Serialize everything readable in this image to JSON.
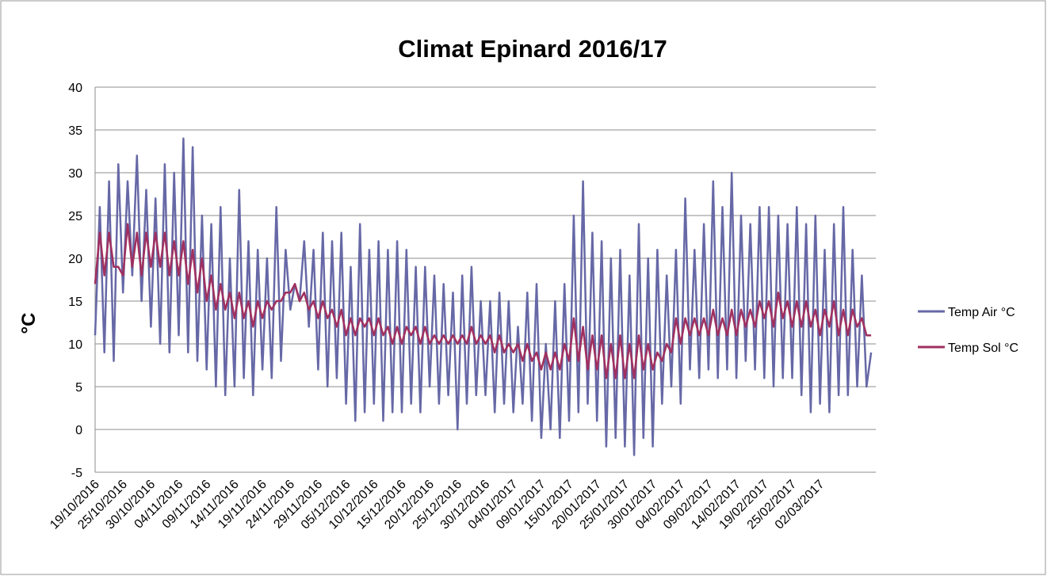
{
  "chart_data": {
    "type": "line",
    "title": "Climat Epinard 2016/17",
    "y_label": "°C",
    "categories": [
      "19/10/2016",
      null,
      null,
      null,
      null,
      null,
      "25/10/2016",
      null,
      null,
      null,
      null,
      null,
      "30/10/2016",
      null,
      null,
      null,
      null,
      null,
      "04/11/2016",
      null,
      null,
      null,
      null,
      null,
      "09/11/2016",
      null,
      null,
      null,
      null,
      null,
      "14/11/2016",
      null,
      null,
      null,
      null,
      null,
      "19/11/2016",
      null,
      null,
      null,
      null,
      null,
      "24/11/2016",
      null,
      null,
      null,
      null,
      null,
      "29/11/2016",
      null,
      null,
      null,
      null,
      null,
      "05/12/2016",
      null,
      null,
      null,
      null,
      null,
      "10/12/2016",
      null,
      null,
      null,
      null,
      null,
      "15/12/2016",
      null,
      null,
      null,
      null,
      null,
      "20/12/2016",
      null,
      null,
      null,
      null,
      null,
      "25/12/2016",
      null,
      null,
      null,
      null,
      null,
      "30/12/2016",
      null,
      null,
      null,
      null,
      null,
      "04/01/2017",
      null,
      null,
      null,
      null,
      null,
      "09/01/2017",
      null,
      null,
      null,
      null,
      null,
      "15/01/2017",
      null,
      null,
      null,
      null,
      null,
      "20/01/2017",
      null,
      null,
      null,
      null,
      null,
      "25/01/2017",
      null,
      null,
      null,
      null,
      null,
      "30/01/2017",
      null,
      null,
      null,
      null,
      null,
      "04/02/2017",
      null,
      null,
      null,
      null,
      null,
      "09/02/2017",
      null,
      null,
      null,
      null,
      null,
      "14/02/2017",
      null,
      null,
      null,
      null,
      null,
      "19/02/2017",
      null,
      null,
      null,
      null,
      null,
      "25/02/2017",
      null,
      null,
      null,
      null,
      null,
      "02/03/2017",
      null,
      null,
      null,
      null,
      null,
      null,
      null,
      null,
      null,
      null,
      null
    ],
    "series": [
      {
        "name": "Temp Air °C",
        "color": "#6668a6",
        "values": [
          11,
          26,
          9,
          29,
          8,
          31,
          16,
          29,
          18,
          32,
          15,
          28,
          12,
          27,
          10,
          31,
          9,
          30,
          11,
          34,
          9,
          33,
          8,
          25,
          7,
          24,
          5,
          26,
          4,
          20,
          5,
          28,
          6,
          22,
          4,
          21,
          7,
          20,
          6,
          26,
          8,
          21,
          14,
          17,
          15,
          22,
          12,
          21,
          7,
          23,
          5,
          22,
          6,
          23,
          3,
          19,
          1,
          24,
          2,
          21,
          3,
          22,
          1,
          21,
          2,
          22,
          2,
          21,
          3,
          19,
          2,
          19,
          5,
          18,
          3,
          17,
          4,
          16,
          0,
          18,
          3,
          19,
          4,
          15,
          4,
          15,
          2,
          16,
          3,
          15,
          2,
          12,
          3,
          16,
          1,
          17,
          -1,
          10,
          0,
          15,
          -1,
          17,
          1,
          25,
          2,
          29,
          3,
          23,
          1,
          22,
          -2,
          20,
          -1,
          21,
          -2,
          18,
          -3,
          24,
          -1,
          20,
          -2,
          21,
          3,
          18,
          5,
          21,
          3,
          27,
          7,
          21,
          6,
          24,
          7,
          29,
          6,
          26,
          7,
          30,
          6,
          25,
          8,
          24,
          7,
          26,
          6,
          26,
          5,
          25,
          6,
          24,
          6,
          26,
          4,
          24,
          2,
          25,
          3,
          21,
          2,
          24,
          4,
          26,
          4,
          21,
          5,
          18,
          5,
          9
        ]
      },
      {
        "name": "Temp Sol °C",
        "color": "#a0305f",
        "values": [
          17,
          23,
          18,
          23,
          19,
          19,
          18,
          24,
          19,
          23,
          18,
          23,
          19,
          23,
          19,
          23,
          18,
          22,
          18,
          22,
          17,
          21,
          16,
          20,
          15,
          18,
          14,
          17,
          14,
          16,
          13,
          16,
          13,
          15,
          12,
          15,
          13,
          15,
          14,
          15,
          15,
          16,
          16,
          17,
          15,
          16,
          14,
          15,
          13,
          15,
          13,
          14,
          12,
          14,
          11,
          13,
          11,
          13,
          12,
          13,
          11,
          13,
          11,
          12,
          10,
          12,
          10,
          12,
          11,
          12,
          10,
          12,
          10,
          11,
          10,
          11,
          10,
          11,
          10,
          11,
          10,
          12,
          10,
          11,
          10,
          11,
          9,
          11,
          9,
          10,
          9,
          10,
          8,
          10,
          8,
          9,
          7,
          9,
          7,
          9,
          7,
          10,
          8,
          13,
          8,
          12,
          7,
          11,
          7,
          11,
          6,
          10,
          6,
          11,
          6,
          10,
          6,
          11,
          7,
          10,
          7,
          9,
          8,
          10,
          9,
          13,
          10,
          13,
          11,
          13,
          11,
          13,
          11,
          14,
          11,
          13,
          11,
          14,
          11,
          14,
          12,
          14,
          12,
          15,
          13,
          15,
          12,
          16,
          13,
          15,
          12,
          15,
          12,
          15,
          12,
          14,
          11,
          14,
          12,
          15,
          11,
          14,
          11,
          14,
          12,
          13,
          11,
          11
        ]
      }
    ],
    "ylim": [
      -5,
      40
    ],
    "yticks": [
      -5,
      0,
      5,
      10,
      15,
      20,
      25,
      30,
      35,
      40
    ],
    "grid": true,
    "legend": "right"
  }
}
